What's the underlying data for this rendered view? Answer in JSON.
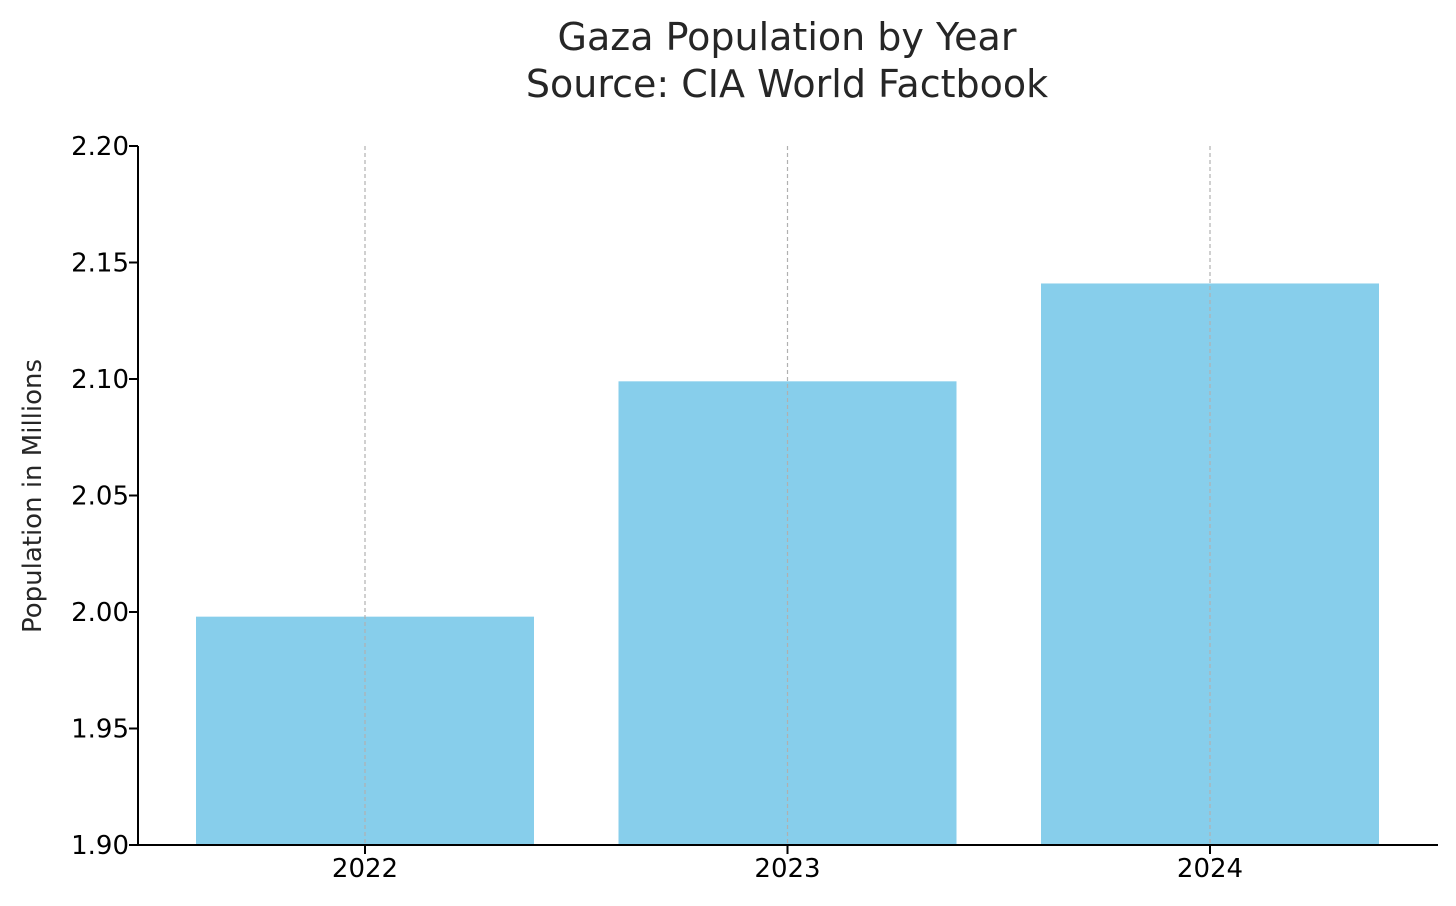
{
  "chart_data": {
    "type": "bar",
    "title_lines": [
      "Gaza Population by Year",
      "Source: CIA World Factbook"
    ],
    "xlabel": "",
    "ylabel": "Population in Millions",
    "categories": [
      "2022",
      "2023",
      "2024"
    ],
    "values": [
      1.998,
      2.099,
      2.141
    ],
    "ylim": [
      1.9,
      2.2
    ],
    "yticks": [
      "1.90",
      "1.95",
      "2.00",
      "2.05",
      "2.10",
      "2.15",
      "2.20"
    ],
    "grid": "vertical dashed",
    "legend": "none",
    "bar_color": "#87ceeb",
    "grid_color": "#b0b0b0",
    "axis_color": "#000000",
    "text_color": "#262626"
  }
}
